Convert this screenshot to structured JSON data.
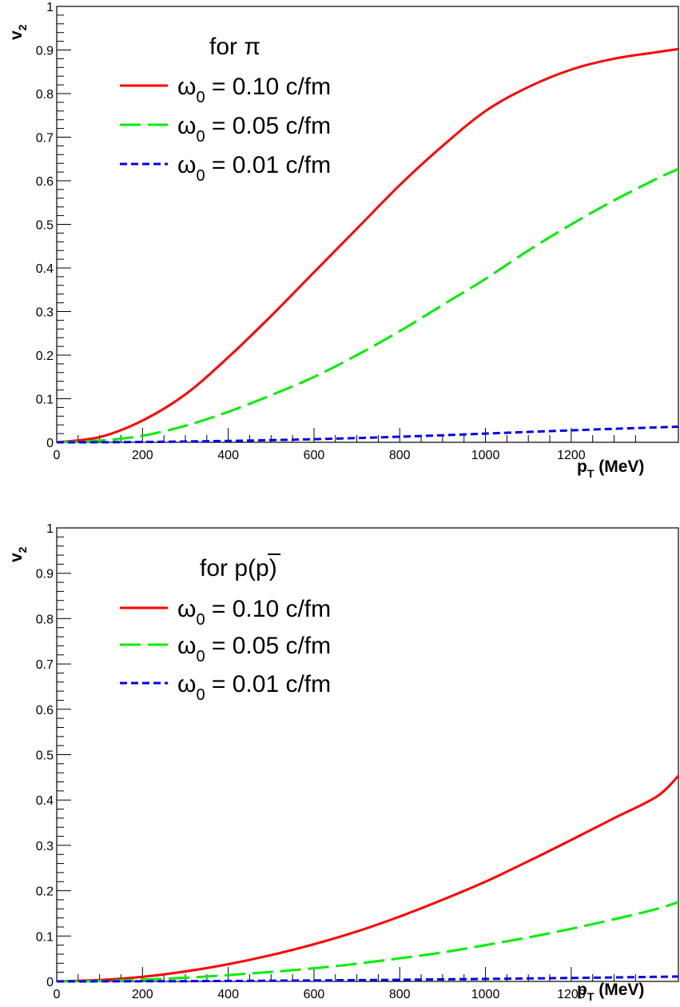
{
  "chart_data": [
    {
      "type": "line",
      "xlabel": {
        "main": "p",
        "sub": "T",
        "unit": " (MeV)"
      },
      "ylabel": {
        "main": "v",
        "sub": "2"
      },
      "xlim": [
        0,
        1450
      ],
      "ylim": [
        0,
        1
      ],
      "x_ticks": [
        "0",
        "200",
        "400",
        "600",
        "800",
        "1000",
        "1200"
      ],
      "y_ticks": [
        "0",
        "0.1",
        "0.2",
        "0.3",
        "0.4",
        "0.5",
        "0.6",
        "0.7",
        "0.8",
        "0.9",
        "1"
      ],
      "annotation": "for π",
      "legend_position": "top-left",
      "series": [
        {
          "name": {
            "main": "ω",
            "sub": "0",
            "rest": " = 0.10 c/fm"
          },
          "color": "#ff0000",
          "dash": "solid",
          "x": [
            0,
            100,
            200,
            300,
            400,
            500,
            600,
            700,
            800,
            900,
            1000,
            1100,
            1200,
            1300,
            1400,
            1450
          ],
          "y": [
            0.0,
            0.012,
            0.05,
            0.11,
            0.195,
            0.29,
            0.39,
            0.49,
            0.59,
            0.68,
            0.76,
            0.815,
            0.855,
            0.88,
            0.895,
            0.902
          ]
        },
        {
          "name": {
            "main": "ω",
            "sub": "0",
            "rest": " = 0.05 c/fm"
          },
          "color": "#00ee00",
          "dash": "long",
          "x": [
            0,
            100,
            200,
            300,
            400,
            500,
            600,
            700,
            800,
            900,
            1000,
            1100,
            1200,
            1300,
            1400,
            1450
          ],
          "y": [
            0.0,
            0.004,
            0.015,
            0.038,
            0.07,
            0.108,
            0.15,
            0.2,
            0.255,
            0.315,
            0.375,
            0.44,
            0.5,
            0.555,
            0.605,
            0.627
          ]
        },
        {
          "name": {
            "main": "ω",
            "sub": "0",
            "rest": " = 0.01 c/fm"
          },
          "color": "#0000ee",
          "dash": "short",
          "x": [
            0,
            100,
            200,
            300,
            400,
            500,
            600,
            700,
            800,
            900,
            1000,
            1100,
            1200,
            1300,
            1400,
            1450
          ],
          "y": [
            0.0,
            0.0002,
            0.0008,
            0.0018,
            0.0032,
            0.005,
            0.0072,
            0.0098,
            0.0128,
            0.0162,
            0.02,
            0.0238,
            0.0275,
            0.031,
            0.0342,
            0.0358
          ]
        }
      ]
    },
    {
      "type": "line",
      "xlabel": {
        "main": "p",
        "sub": "T",
        "unit": " (MeV)"
      },
      "ylabel": {
        "main": "v",
        "sub": "2"
      },
      "xlim": [
        0,
        1450
      ],
      "ylim": [
        0,
        1
      ],
      "x_ticks": [
        "0",
        "200",
        "400",
        "600",
        "800",
        "1000",
        "1200"
      ],
      "y_ticks": [
        "0",
        "0.1",
        "0.2",
        "0.3",
        "0.4",
        "0.5",
        "0.6",
        "0.7",
        "0.8",
        "0.9",
        "1"
      ],
      "annotation": "for p(p)",
      "annotation_overline": "p",
      "legend_position": "top-left",
      "series": [
        {
          "name": {
            "main": "ω",
            "sub": "0",
            "rest": " = 0.10 c/fm"
          },
          "color": "#ff0000",
          "dash": "solid",
          "x": [
            0,
            100,
            200,
            300,
            400,
            500,
            600,
            700,
            800,
            900,
            1000,
            1100,
            1200,
            1300,
            1400,
            1450
          ],
          "y": [
            0.0,
            0.003,
            0.01,
            0.022,
            0.038,
            0.058,
            0.082,
            0.11,
            0.143,
            0.18,
            0.22,
            0.265,
            0.312,
            0.36,
            0.408,
            0.453
          ]
        },
        {
          "name": {
            "main": "ω",
            "sub": "0",
            "rest": " = 0.05 c/fm"
          },
          "color": "#00ee00",
          "dash": "long",
          "x": [
            0,
            100,
            200,
            300,
            400,
            500,
            600,
            700,
            800,
            900,
            1000,
            1100,
            1200,
            1300,
            1400,
            1450
          ],
          "y": [
            0.0,
            0.001,
            0.004,
            0.008,
            0.014,
            0.021,
            0.029,
            0.039,
            0.051,
            0.064,
            0.08,
            0.097,
            0.116,
            0.137,
            0.16,
            0.175
          ]
        },
        {
          "name": {
            "main": "ω",
            "sub": "0",
            "rest": " = 0.01 c/fm"
          },
          "color": "#0000ee",
          "dash": "short",
          "x": [
            0,
            100,
            200,
            300,
            400,
            500,
            600,
            700,
            800,
            900,
            1000,
            1100,
            1200,
            1300,
            1400,
            1450
          ],
          "y": [
            0.0,
            0.0001,
            0.0003,
            0.0006,
            0.001,
            0.0015,
            0.0021,
            0.0028,
            0.0036,
            0.0045,
            0.0055,
            0.0065,
            0.0076,
            0.0088,
            0.0101,
            0.0108
          ]
        }
      ]
    }
  ]
}
